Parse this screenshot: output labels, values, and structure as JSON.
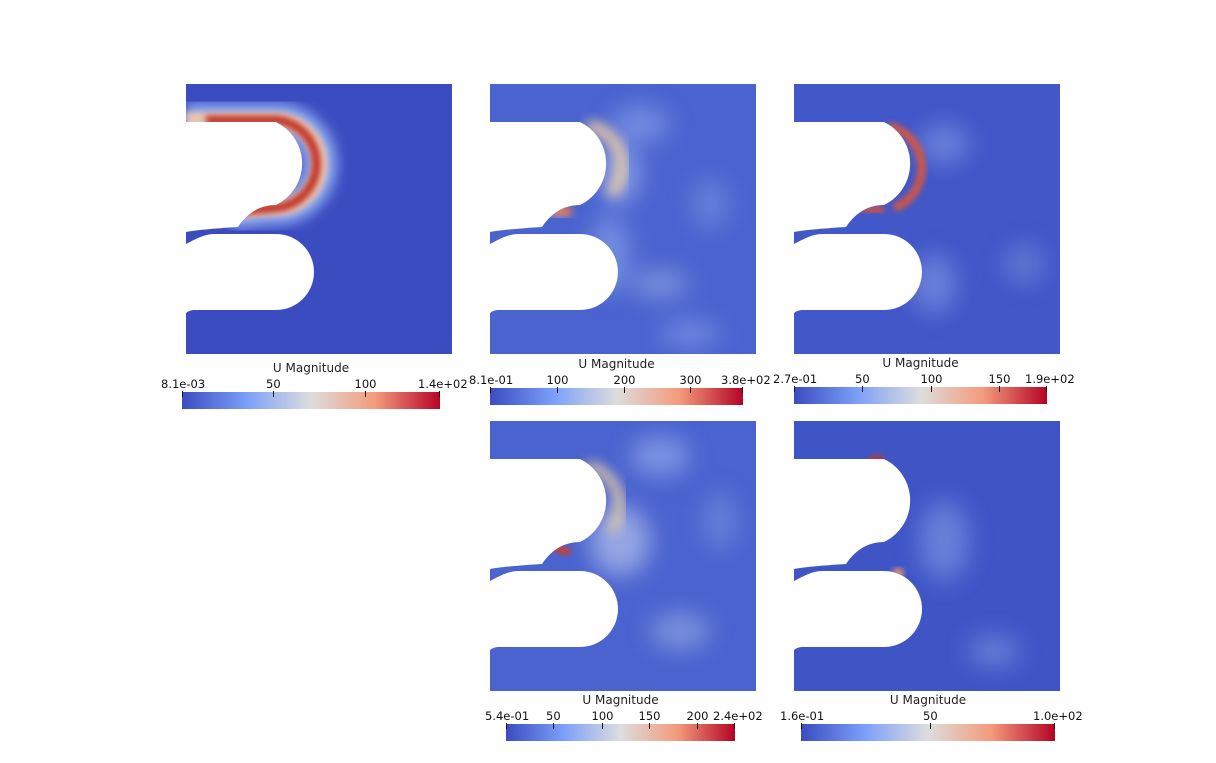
{
  "colormap": {
    "low": "#3b4cc0",
    "mid": "#dddddd",
    "high": "#b40426"
  },
  "panels": [
    {
      "id": "p1",
      "legend": {
        "title": "U Magnitude",
        "min_label": "8.1e-03",
        "max_label": "1.4e+02",
        "ticks": [
          "50",
          "100"
        ]
      }
    },
    {
      "id": "p2",
      "legend": {
        "title": "U Magnitude",
        "min_label": "8.1e-01",
        "max_label": "3.8e+02",
        "ticks": [
          "100",
          "200",
          "300"
        ]
      }
    },
    {
      "id": "p3",
      "legend": {
        "title": "U Magnitude",
        "min_label": "2.7e-01",
        "max_label": "1.9e+02",
        "ticks": [
          "50",
          "100",
          "150"
        ]
      }
    },
    {
      "id": "p4",
      "legend": {
        "title": "U Magnitude",
        "min_label": "5.4e-01",
        "max_label": "2.4e+02",
        "ticks": [
          "50",
          "100",
          "150",
          "200"
        ]
      }
    },
    {
      "id": "p5",
      "legend": {
        "title": "U Magnitude",
        "min_label": "1.6e-01",
        "max_label": "1.0e+02",
        "ticks": [
          "50"
        ]
      }
    }
  ]
}
